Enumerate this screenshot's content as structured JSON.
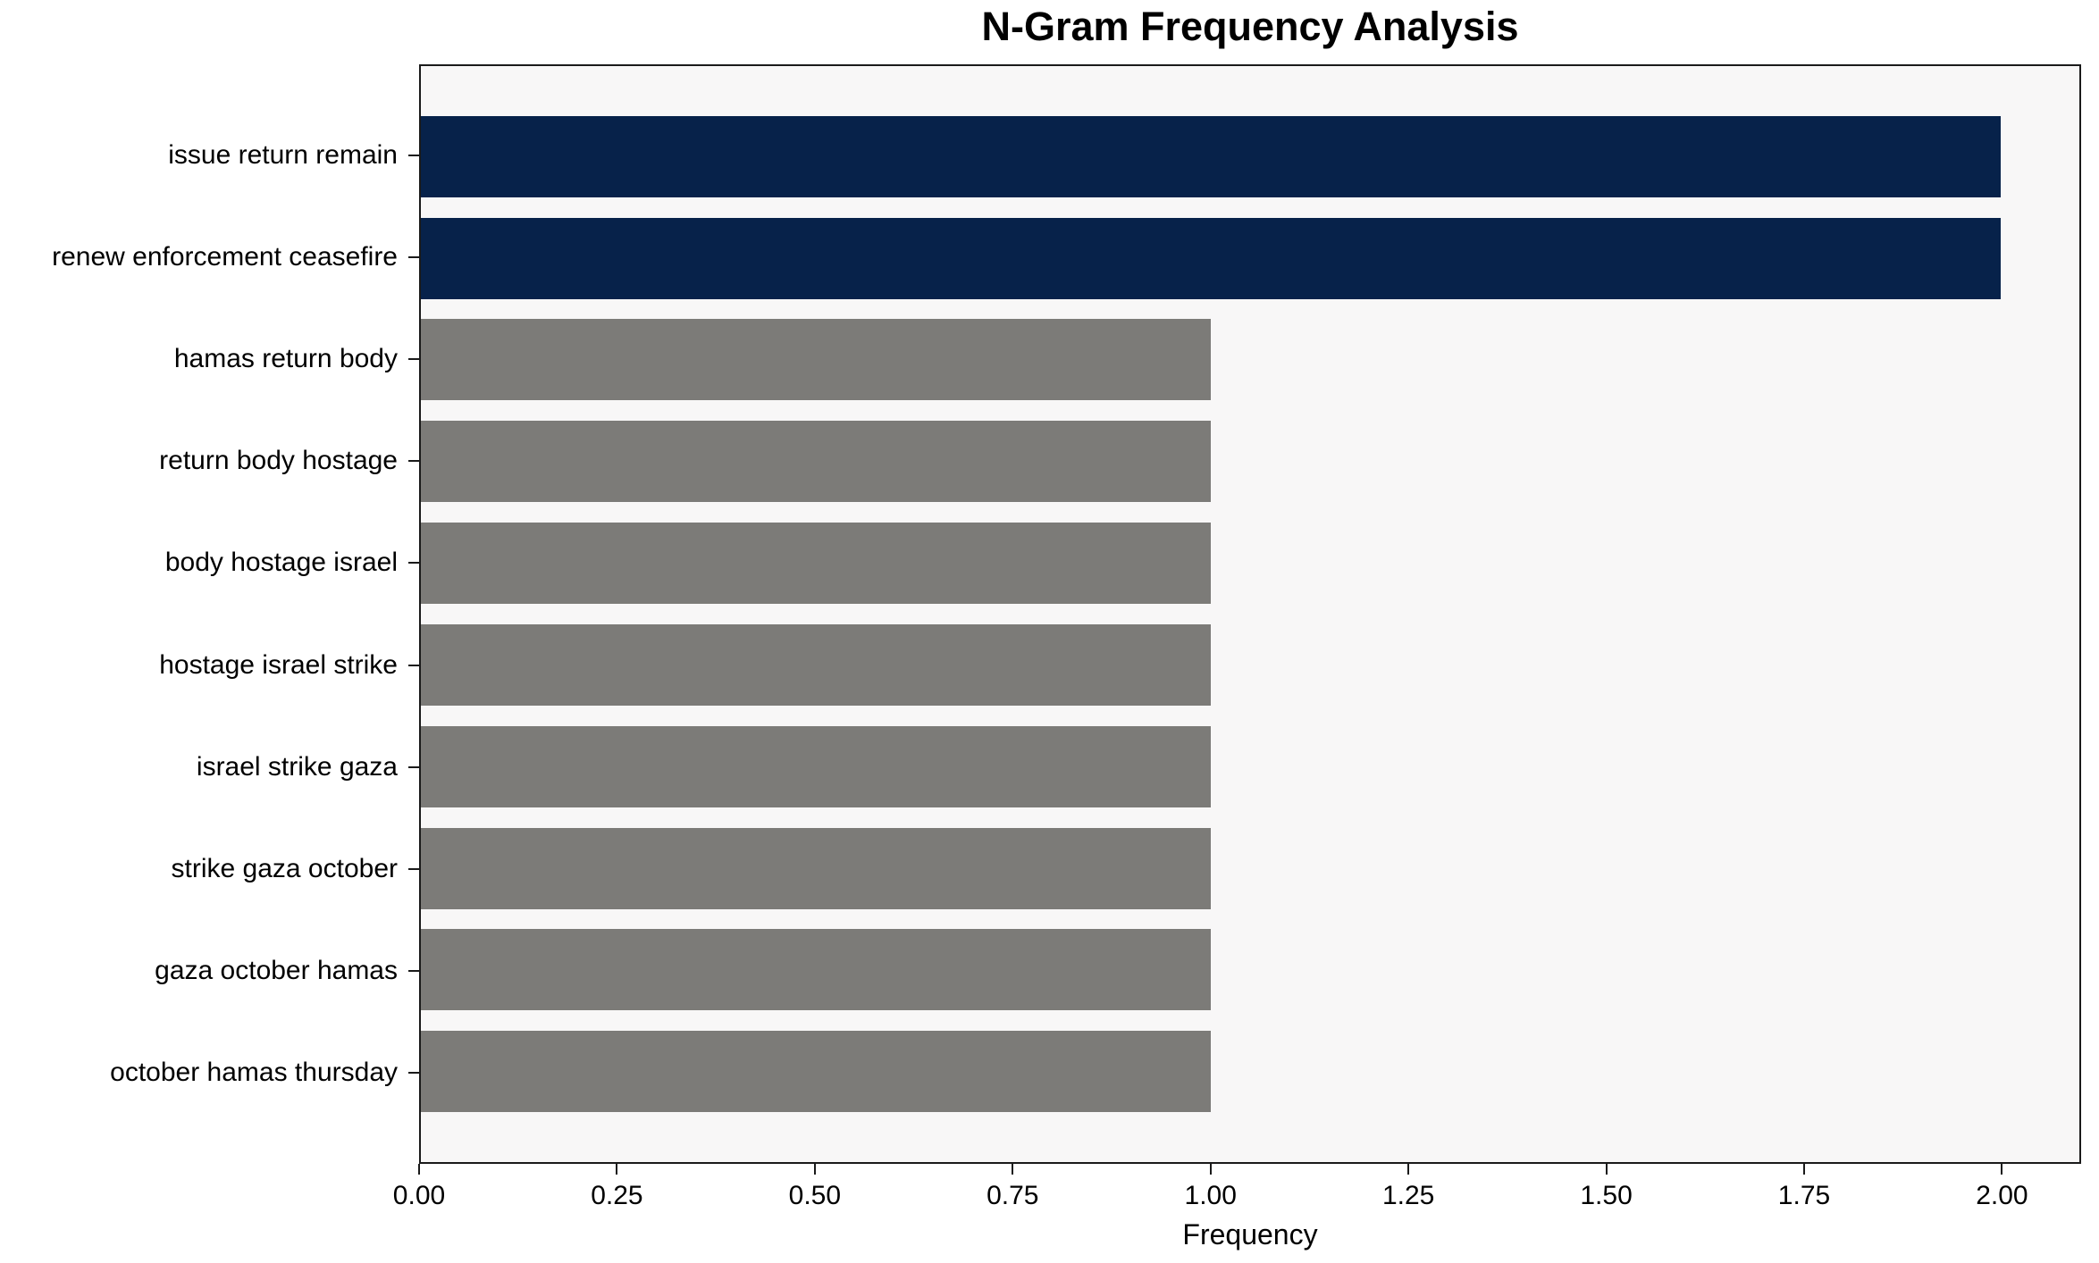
{
  "chart_data": {
    "type": "bar",
    "orientation": "horizontal",
    "title": "N-Gram Frequency Analysis",
    "xlabel": "Frequency",
    "ylabel": "",
    "categories": [
      "issue return remain",
      "renew enforcement ceasefire",
      "hamas return body",
      "return body hostage",
      "body hostage israel",
      "hostage israel strike",
      "israel strike gaza",
      "strike gaza october",
      "gaza october hamas",
      "october hamas thursday"
    ],
    "values": [
      2,
      2,
      1,
      1,
      1,
      1,
      1,
      1,
      1,
      1
    ],
    "x_ticks": [
      {
        "value": 0.0,
        "label": "0.00"
      },
      {
        "value": 0.25,
        "label": "0.25"
      },
      {
        "value": 0.5,
        "label": "0.50"
      },
      {
        "value": 0.75,
        "label": "0.75"
      },
      {
        "value": 1.0,
        "label": "1.00"
      },
      {
        "value": 1.25,
        "label": "1.25"
      },
      {
        "value": 1.5,
        "label": "1.50"
      },
      {
        "value": 1.75,
        "label": "1.75"
      },
      {
        "value": 2.0,
        "label": "2.00"
      }
    ],
    "xlim": [
      0,
      2.1
    ],
    "grid": false,
    "legend": null,
    "colors": {
      "highlight_bar": "#07224a",
      "default_bar": "#7c7b78",
      "plot_background": "#f8f7f7",
      "figure_background": "#ffffff",
      "axis_line": "#1a1a1a",
      "text": "#000000"
    },
    "bar_color_keys": [
      "highlight_bar",
      "highlight_bar",
      "default_bar",
      "default_bar",
      "default_bar",
      "default_bar",
      "default_bar",
      "default_bar",
      "default_bar",
      "default_bar"
    ]
  }
}
